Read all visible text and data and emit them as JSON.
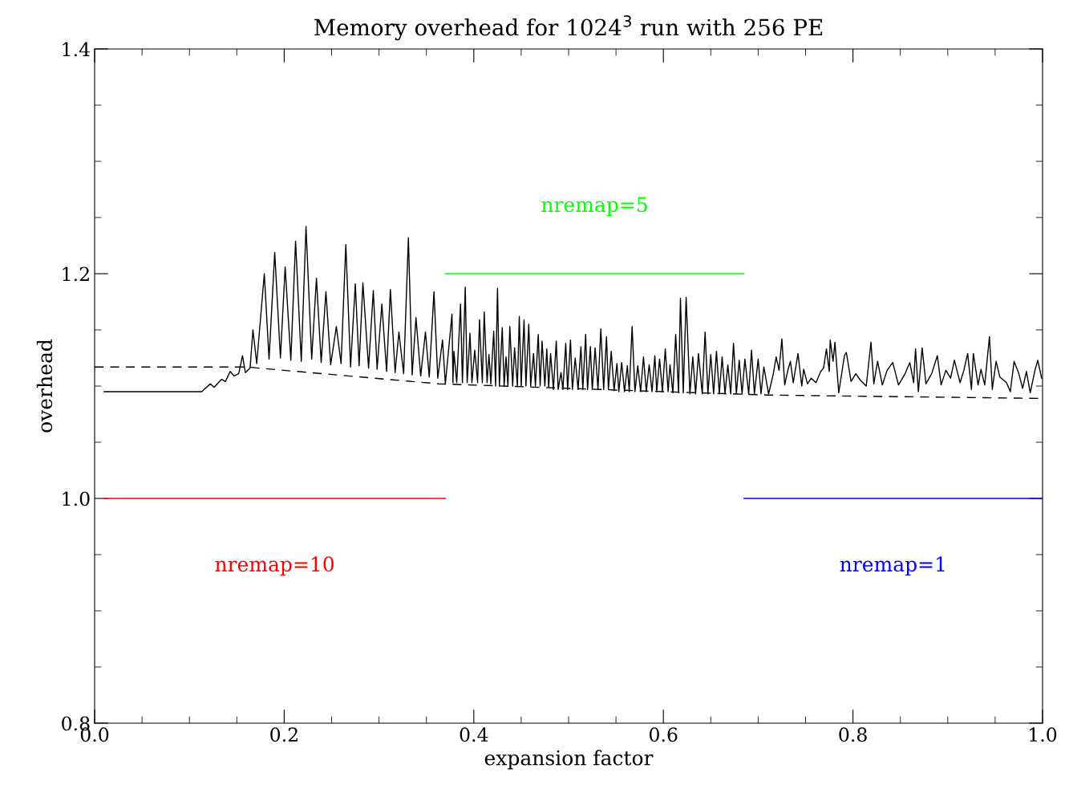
{
  "chart_data": {
    "type": "line",
    "title": "Memory overhead for 1024$^{3}$ run with 256 PE",
    "xlabel": "expansion factor",
    "ylabel": "overhead",
    "xlim": [
      0,
      1
    ],
    "ylim": [
      0.8,
      1.4
    ],
    "xticks": [
      {
        "value": 0,
        "label": "0.0"
      },
      0.2,
      0.4,
      0.6,
      0.8,
      {
        "value": 1,
        "label": "1.0"
      }
    ],
    "yticks": [
      0.8,
      {
        "value": 1,
        "label": "1.0"
      },
      1.2,
      1.4
    ],
    "grid": false,
    "legend": false,
    "marker": "none",
    "series": [
      {
        "color": "#000000",
        "line_style": "solid",
        "x": [
          0.01,
          0.113,
          0.122,
          0.126,
          0.134,
          0.138,
          0.143,
          0.147,
          0.152,
          0.156,
          0.159,
          0.164,
          0.167,
          0.171,
          0.179,
          0.184,
          0.19,
          0.196,
          0.201,
          0.207,
          0.212,
          0.218,
          0.223,
          0.229,
          0.234,
          0.239,
          0.244,
          0.249,
          0.255,
          0.26,
          0.265,
          0.27,
          0.275,
          0.279,
          0.283,
          0.289,
          0.294,
          0.298,
          0.303,
          0.308,
          0.312,
          0.317,
          0.321,
          0.326,
          0.331,
          0.335,
          0.339,
          0.344,
          0.349,
          0.353,
          0.358,
          0.362,
          0.367,
          0.37,
          0.377,
          0.378,
          0.379,
          0.382,
          0.386,
          0.388,
          0.391,
          0.393,
          0.396,
          0.398,
          0.401,
          0.404,
          0.406,
          0.409,
          0.411,
          0.414,
          0.416,
          0.418,
          0.421,
          0.423,
          0.425,
          0.427,
          0.43,
          0.432,
          0.434,
          0.436,
          0.438,
          0.441,
          0.443,
          0.446,
          0.448,
          0.45,
          0.453,
          0.455,
          0.458,
          0.46,
          0.463,
          0.465,
          0.468,
          0.47,
          0.472,
          0.475,
          0.477,
          0.479,
          0.481,
          0.484,
          0.487,
          0.489,
          0.492,
          0.494,
          0.497,
          0.499,
          0.502,
          0.504,
          0.507,
          0.51,
          0.513,
          0.515,
          0.518,
          0.52,
          0.523,
          0.525,
          0.528,
          0.531,
          0.534,
          0.537,
          0.54,
          0.542,
          0.545,
          0.548,
          0.551,
          0.553,
          0.556,
          0.559,
          0.562,
          0.564,
          0.567,
          0.57,
          0.573,
          0.576,
          0.579,
          0.582,
          0.585,
          0.588,
          0.591,
          0.593,
          0.596,
          0.599,
          0.602,
          0.605,
          0.607,
          0.61,
          0.613,
          0.616,
          0.618,
          0.621,
          0.624,
          0.628,
          0.631,
          0.634,
          0.637,
          0.641,
          0.644,
          0.647,
          0.65,
          0.653,
          0.656,
          0.659,
          0.662,
          0.665,
          0.668,
          0.671,
          0.674,
          0.677,
          0.68,
          0.683,
          0.686,
          0.69,
          0.693,
          0.696,
          0.7,
          0.703,
          0.706,
          0.711,
          0.716,
          0.719,
          0.722,
          0.725,
          0.728,
          0.731,
          0.734,
          0.737,
          0.742,
          0.746,
          0.748,
          0.752,
          0.756,
          0.761,
          0.766,
          0.769,
          0.772,
          0.775,
          0.776,
          0.779,
          0.781,
          0.785,
          0.791,
          0.793,
          0.798,
          0.803,
          0.808,
          0.814,
          0.819,
          0.822,
          0.826,
          0.831,
          0.836,
          0.842,
          0.848,
          0.855,
          0.86,
          0.864,
          0.866,
          0.869,
          0.873,
          0.877,
          0.883,
          0.889,
          0.893,
          0.898,
          0.903,
          0.907,
          0.913,
          0.917,
          0.921,
          0.925,
          0.927,
          0.932,
          0.935,
          0.939,
          0.944,
          0.947,
          0.951,
          0.955,
          0.962,
          0.966,
          0.97,
          0.975,
          0.979,
          0.983,
          0.987,
          0.992,
          0.995,
          0.999
        ],
        "values": [
          1.095,
          1.095,
          1.102,
          1.099,
          1.106,
          1.104,
          1.113,
          1.109,
          1.111,
          1.127,
          1.112,
          1.116,
          1.15,
          1.12,
          1.2,
          1.124,
          1.219,
          1.125,
          1.206,
          1.123,
          1.229,
          1.122,
          1.242,
          1.124,
          1.196,
          1.121,
          1.184,
          1.119,
          1.153,
          1.12,
          1.226,
          1.117,
          1.191,
          1.118,
          1.192,
          1.116,
          1.185,
          1.115,
          1.173,
          1.113,
          1.186,
          1.112,
          1.148,
          1.111,
          1.232,
          1.11,
          1.161,
          1.109,
          1.148,
          1.108,
          1.184,
          1.107,
          1.141,
          1.102,
          1.164,
          1.103,
          1.131,
          1.103,
          1.173,
          1.103,
          1.188,
          1.103,
          1.147,
          1.103,
          1.132,
          1.103,
          1.159,
          1.103,
          1.166,
          1.103,
          1.128,
          1.102,
          1.149,
          1.1,
          1.187,
          1.1,
          1.152,
          1.1,
          1.126,
          1.1,
          1.153,
          1.1,
          1.134,
          1.1,
          1.162,
          1.1,
          1.159,
          1.1,
          1.155,
          1.1,
          1.129,
          1.1,
          1.146,
          1.1,
          1.14,
          1.1,
          1.133,
          1.099,
          1.129,
          1.097,
          1.14,
          1.097,
          1.112,
          1.097,
          1.138,
          1.097,
          1.141,
          1.097,
          1.125,
          1.097,
          1.135,
          1.097,
          1.146,
          1.097,
          1.135,
          1.097,
          1.134,
          1.097,
          1.151,
          1.097,
          1.144,
          1.097,
          1.131,
          1.096,
          1.12,
          1.095,
          1.121,
          1.095,
          1.118,
          1.095,
          1.153,
          1.095,
          1.118,
          1.095,
          1.126,
          1.095,
          1.119,
          1.095,
          1.127,
          1.095,
          1.124,
          1.095,
          1.133,
          1.095,
          1.119,
          1.094,
          1.146,
          1.094,
          1.178,
          1.094,
          1.179,
          1.093,
          1.126,
          1.093,
          1.129,
          1.093,
          1.148,
          1.093,
          1.128,
          1.093,
          1.131,
          1.093,
          1.126,
          1.093,
          1.119,
          1.093,
          1.138,
          1.093,
          1.123,
          1.093,
          1.124,
          1.093,
          1.132,
          1.093,
          1.124,
          1.093,
          1.117,
          1.093,
          1.111,
          1.126,
          1.114,
          1.142,
          1.101,
          1.113,
          1.122,
          1.103,
          1.129,
          1.1,
          1.115,
          1.102,
          1.107,
          1.103,
          1.113,
          1.116,
          1.133,
          1.113,
          1.141,
          1.122,
          1.139,
          1.094,
          1.127,
          1.13,
          1.104,
          1.111,
          1.105,
          1.1,
          1.139,
          1.102,
          1.122,
          1.101,
          1.114,
          1.121,
          1.101,
          1.111,
          1.121,
          1.103,
          1.133,
          1.095,
          1.134,
          1.102,
          1.111,
          1.127,
          1.101,
          1.114,
          1.107,
          1.123,
          1.103,
          1.114,
          1.129,
          1.097,
          1.129,
          1.101,
          1.115,
          1.101,
          1.144,
          1.097,
          1.122,
          1.108,
          1.103,
          1.095,
          1.122,
          1.111,
          1.098,
          1.113,
          1.094,
          1.114,
          1.123,
          1.107
        ]
      },
      {
        "color": "#000000",
        "line_style": "dashed",
        "x": [
          0,
          0.16,
          0.173,
          0.363,
          0.6,
          0.71,
          1.0
        ],
        "values": [
          1.117,
          1.117,
          1.116,
          1.102,
          1.095,
          1.092,
          1.089
        ]
      },
      {
        "name": "nremap=10",
        "color": "#ff0000",
        "line_style": "solid",
        "x": [
          0.01,
          0.37
        ],
        "values": [
          1.0,
          1.0
        ]
      },
      {
        "name": "nremap=5",
        "color": "#00ff00",
        "line_style": "solid",
        "x": [
          0.37,
          0.685
        ],
        "values": [
          1.2,
          1.2
        ]
      },
      {
        "name": "nremap=1",
        "color": "#0000ff",
        "line_style": "solid",
        "x": [
          0.685,
          1.0
        ],
        "values": [
          1.0,
          1.0
        ]
      }
    ]
  }
}
